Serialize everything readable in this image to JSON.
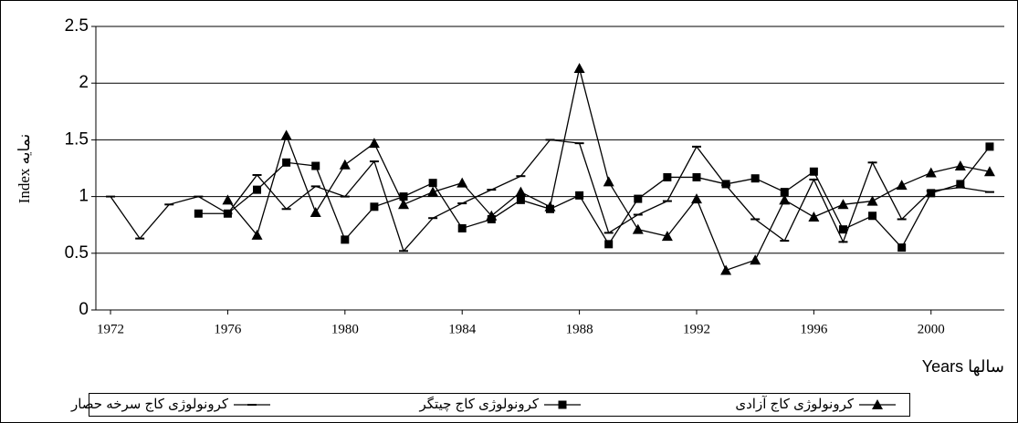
{
  "chart_data": {
    "type": "line",
    "x": [
      1972,
      1973,
      1974,
      1975,
      1976,
      1977,
      1978,
      1979,
      1980,
      1981,
      1982,
      1983,
      1984,
      1985,
      1986,
      1987,
      1988,
      1989,
      1990,
      1991,
      1992,
      1993,
      1994,
      1995,
      1996,
      1997,
      1998,
      1999,
      2000,
      2001,
      2002
    ],
    "series": [
      {
        "name": "کرونولوژی کاج سرخه حصار",
        "color": "#000000",
        "marker": "dash",
        "values": [
          1.0,
          0.63,
          0.93,
          1.0,
          0.85,
          1.19,
          0.89,
          1.09,
          1.0,
          1.31,
          0.52,
          0.81,
          0.94,
          1.06,
          1.18,
          1.5,
          1.47,
          0.68,
          0.84,
          0.96,
          1.44,
          1.1,
          0.8,
          0.61,
          1.15,
          0.6,
          1.3,
          0.8,
          1.05,
          1.08,
          1.04
        ]
      },
      {
        "name": "کرونولوژی کاج چیتگر",
        "color": "#000000",
        "marker": "square",
        "values": [
          null,
          null,
          null,
          0.85,
          0.85,
          1.06,
          1.3,
          1.27,
          0.62,
          0.91,
          1.0,
          1.12,
          0.72,
          0.8,
          0.97,
          0.89,
          1.01,
          0.58,
          0.98,
          1.17,
          1.17,
          1.11,
          1.16,
          1.04,
          1.22,
          0.71,
          0.83,
          0.55,
          1.03,
          1.11,
          1.44
        ]
      },
      {
        "name": "کرونولوژی کاج آزادی",
        "color": "#000000",
        "marker": "triangle",
        "values": [
          null,
          null,
          null,
          null,
          0.97,
          0.66,
          1.54,
          0.86,
          1.28,
          1.47,
          0.93,
          1.04,
          1.12,
          0.83,
          1.04,
          0.91,
          2.13,
          1.13,
          0.71,
          0.65,
          0.98,
          0.35,
          0.44,
          0.97,
          0.82,
          0.93,
          0.96,
          1.1,
          1.21,
          1.27,
          1.22
        ]
      }
    ],
    "x_label": "Years سالها",
    "y_label": "Index نمایه",
    "xlim": [
      1971.5,
      2002.5
    ],
    "xticks": [
      1972,
      1976,
      1980,
      1984,
      1988,
      1992,
      1996,
      2000
    ],
    "ylim": [
      0,
      2.5
    ],
    "yticks": [
      0,
      {
        "value": 0.5,
        "label": "0.5"
      },
      1,
      {
        "value": 1.5,
        "label": "1.5"
      },
      2,
      {
        "value": 2.5,
        "label": "2.5"
      }
    ],
    "grid": true,
    "legend": "bottom"
  }
}
